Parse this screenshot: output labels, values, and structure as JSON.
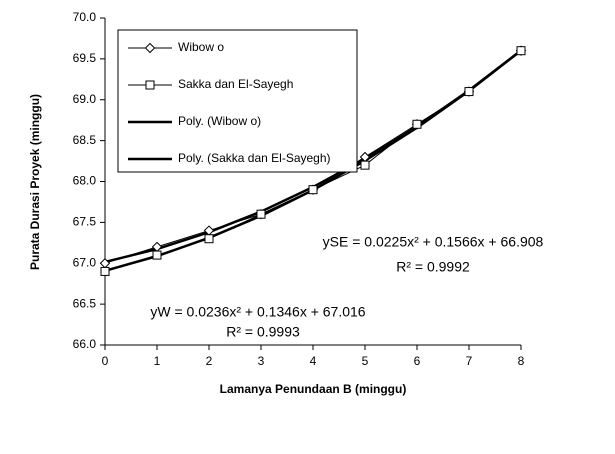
{
  "chart_data": {
    "type": "line",
    "x_label": "Lamanya Penundaan B (minggu)",
    "y_label": "Purata Durasi Proyek (minggu)",
    "x": [
      0,
      1,
      2,
      3,
      4,
      5,
      6,
      7,
      8
    ],
    "series": [
      {
        "name": "Wibow o",
        "color": "#000000",
        "marker": "diamond",
        "width": 1,
        "values": [
          67.0,
          67.2,
          67.4,
          67.6,
          67.9,
          68.3,
          68.7,
          69.1,
          69.6
        ]
      },
      {
        "name": "Sakka dan El-Sayegh",
        "color": "#000000",
        "marker": "square",
        "width": 1,
        "values": [
          66.9,
          67.1,
          67.3,
          67.6,
          67.9,
          68.2,
          68.7,
          69.1,
          69.6
        ]
      },
      {
        "name": "Poly. (Wibow o)",
        "color": "#000000",
        "marker": "none",
        "width": 2.5,
        "values": [
          67.016,
          67.174,
          67.38,
          67.632,
          67.932,
          68.279,
          68.673,
          69.115,
          69.603
        ]
      },
      {
        "name": "Poly. (Sakka dan El-Sayegh)",
        "color": "#000000",
        "marker": "none",
        "width": 2.5,
        "values": [
          66.908,
          67.087,
          67.311,
          67.58,
          67.894,
          68.254,
          68.658,
          69.107,
          69.601
        ]
      }
    ],
    "annotations": [
      "ySE = 0.0225x² + 0.1566x + 66.908",
      "R² = 0.9992",
      "yW = 0.0236x² + 0.1346x + 67.016",
      "R² = 0.9993"
    ],
    "xlim": [
      0,
      8
    ],
    "xticks": [
      0,
      1,
      2,
      3,
      4,
      5,
      6,
      7,
      8
    ],
    "ylim": [
      66,
      70
    ],
    "yticks": [
      {
        "value": 66,
        "label": "66.0"
      },
      {
        "value": 66.5,
        "label": "66.5"
      },
      {
        "value": 67,
        "label": "67.0"
      },
      {
        "value": 67.5,
        "label": "67.5"
      },
      {
        "value": 68,
        "label": "68.0"
      },
      {
        "value": 68.5,
        "label": "68.5"
      },
      {
        "value": 69,
        "label": "69.0"
      },
      {
        "value": 69.5,
        "label": "69.5"
      },
      {
        "value": 70,
        "label": "70.0"
      }
    ],
    "legend": "upper-left"
  }
}
